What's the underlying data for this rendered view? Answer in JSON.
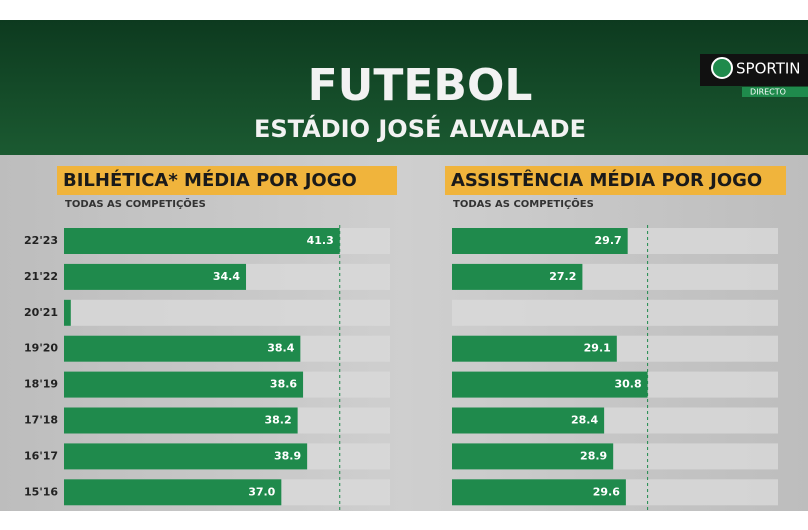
{
  "header": {
    "title": "FUTEBOL",
    "subtitle": "ESTÁDIO JOSÉ ALVALADE",
    "channel": "SPORTIN",
    "live": "DIRECTO"
  },
  "chart_data": [
    {
      "type": "bar",
      "orientation": "horizontal",
      "title": "BILHÉTICA* MÉDIA POR JOGO",
      "subtitle": "TODAS AS COMPETIÇÕES",
      "categories": [
        "22'23",
        "21'22",
        "20'21",
        "19'20",
        "18'19",
        "17'18",
        "16'17",
        "15'16"
      ],
      "values": [
        41.3,
        34.4,
        21.5,
        38.4,
        38.6,
        38.2,
        38.9,
        37.0
      ],
      "value_labels": [
        "41.3",
        "34.4",
        null,
        "38.4",
        "38.6",
        "38.2",
        "38.9",
        "37.0"
      ],
      "color": "#1f8a4c",
      "xlim": [
        21,
        45
      ]
    },
    {
      "type": "bar",
      "orientation": "horizontal",
      "title": "ASSISTÊNCIA MÉDIA POR JOGO",
      "subtitle": "TODAS AS COMPETIÇÕES",
      "values": [
        29.7,
        27.2,
        null,
        29.1,
        30.8,
        28.4,
        28.9,
        29.6
      ],
      "color": "#1f8a4c",
      "xlim": [
        20,
        38
      ]
    }
  ]
}
